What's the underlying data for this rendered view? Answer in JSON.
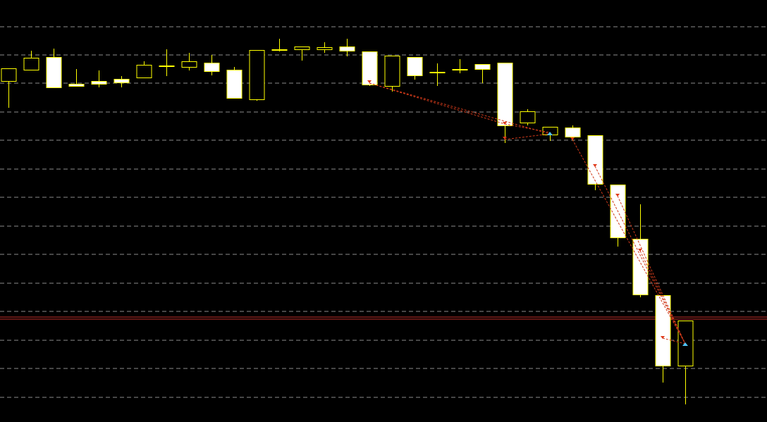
{
  "chart_data": {
    "type": "candlestick",
    "ylim": [
      0,
      599
    ],
    "yticks": [
      35,
      76,
      116,
      157,
      197,
      238,
      278,
      319,
      359,
      400,
      440,
      481,
      521,
      561
    ],
    "grid": true,
    "up_color": "#000000",
    "down_color": "#ffffff",
    "edge_color": "#ffff00",
    "grid_color": "#8c8c8c",
    "hline": 149,
    "hline_color": "#c0302a",
    "open": [
      484,
      500,
      518,
      480,
      484,
      487,
      489,
      506,
      504,
      510,
      500,
      458,
      529,
      529,
      529,
      533,
      526,
      477,
      518,
      497,
      501,
      508,
      510,
      425,
      408,
      418,
      407,
      337,
      260,
      180,
      80
    ],
    "high": [
      502,
      527,
      530,
      501,
      499,
      491,
      512,
      529,
      524,
      521,
      504,
      528,
      544,
      533,
      539,
      544,
      526,
      520,
      518,
      509,
      515,
      508,
      510,
      444,
      419,
      421,
      407,
      337,
      309,
      180,
      144
    ],
    "low": [
      446,
      500,
      475,
      477,
      475,
      475,
      489,
      491,
      499,
      492,
      460,
      456,
      526,
      513,
      524,
      519,
      477,
      469,
      486,
      477,
      495,
      481,
      396,
      421,
      399,
      399,
      329,
      249,
      177,
      56,
      25
    ],
    "close": [
      502,
      517,
      475,
      477,
      480,
      482,
      507,
      506,
      512,
      498,
      460,
      528,
      529,
      533,
      532,
      527,
      479,
      520,
      492,
      497,
      501,
      501,
      421,
      441,
      419,
      405,
      338,
      262,
      181,
      80,
      144
    ]
  }
}
